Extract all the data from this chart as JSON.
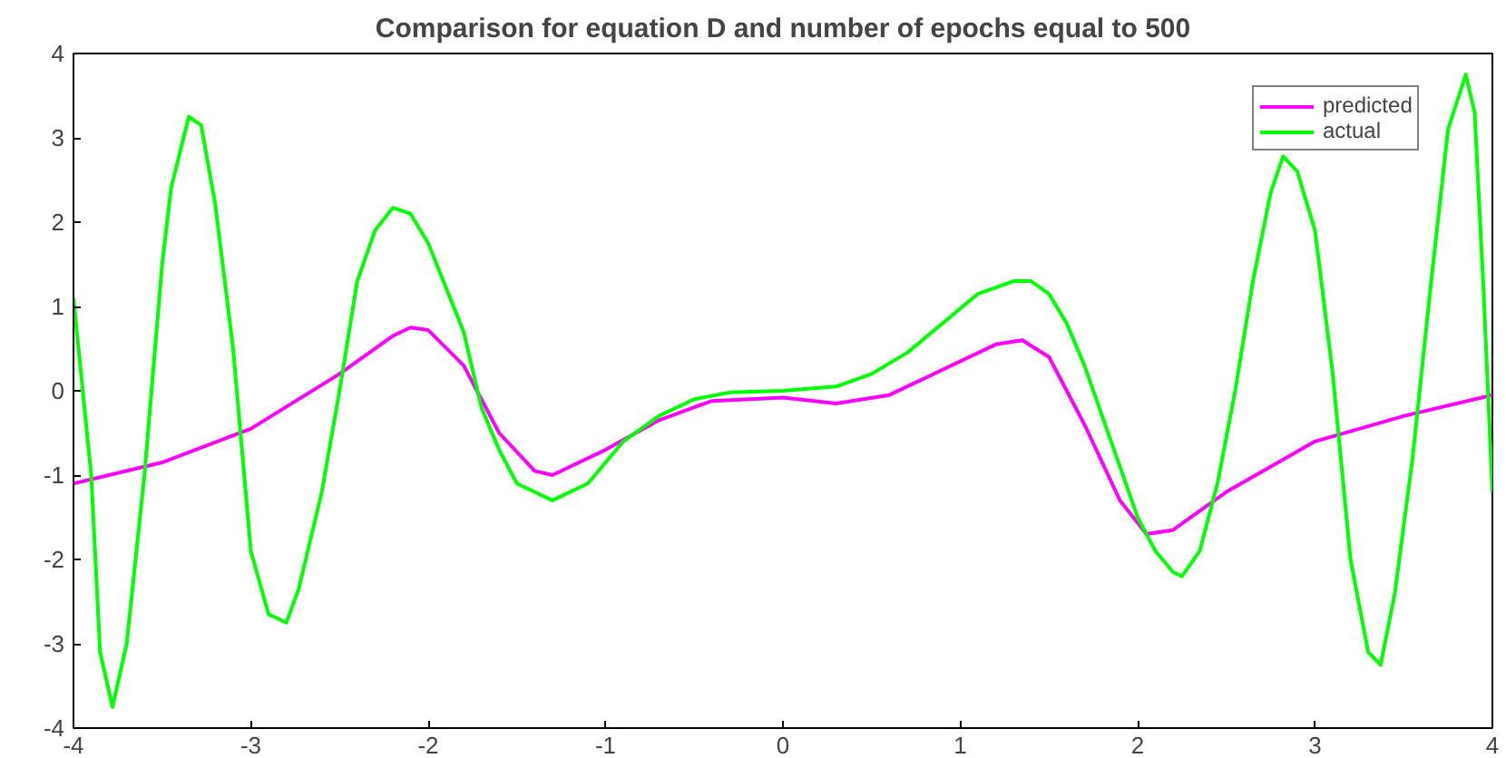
{
  "chart_data": {
    "type": "line",
    "title": "Comparison for equation D and number of epochs equal to 500",
    "xlim": [
      -4,
      4
    ],
    "ylim": [
      -4,
      4
    ],
    "xticks": [
      -4,
      -3,
      -2,
      -1,
      0,
      1,
      2,
      3,
      4
    ],
    "yticks": [
      -4,
      -3,
      -2,
      -1,
      0,
      1,
      2,
      3,
      4
    ],
    "grid": false,
    "legend": "top right",
    "line_style": "solid",
    "marker": "none",
    "series": [
      {
        "name": "predicted",
        "color": "#ff00ff",
        "x": [
          -4,
          -3.5,
          -3,
          -2.5,
          -2.2,
          -2.1,
          -2.0,
          -1.8,
          -1.6,
          -1.4,
          -1.3,
          -1.0,
          -0.7,
          -0.4,
          0,
          0.3,
          0.6,
          0.9,
          1.2,
          1.35,
          1.5,
          1.7,
          1.9,
          2.05,
          2.2,
          2.5,
          3.0,
          3.5,
          4.0
        ],
        "values": [
          -1.1,
          -0.85,
          -0.45,
          0.2,
          0.65,
          0.75,
          0.72,
          0.3,
          -0.5,
          -0.95,
          -1.0,
          -0.7,
          -0.35,
          -0.12,
          -0.08,
          -0.15,
          -0.05,
          0.25,
          0.55,
          0.6,
          0.4,
          -0.4,
          -1.3,
          -1.7,
          -1.65,
          -1.2,
          -0.6,
          -0.3,
          -0.05
        ]
      },
      {
        "name": "actual",
        "color": "#00ff00",
        "x": [
          -4,
          -3.9,
          -3.85,
          -3.78,
          -3.7,
          -3.6,
          -3.5,
          -3.45,
          -3.35,
          -3.28,
          -3.2,
          -3.1,
          -3.0,
          -2.9,
          -2.8,
          -2.73,
          -2.6,
          -2.5,
          -2.4,
          -2.3,
          -2.2,
          -2.1,
          -2.0,
          -1.8,
          -1.7,
          -1.6,
          -1.5,
          -1.3,
          -1.1,
          -0.9,
          -0.7,
          -0.5,
          -0.3,
          0,
          0.3,
          0.5,
          0.7,
          0.9,
          1.1,
          1.3,
          1.4,
          1.5,
          1.6,
          1.7,
          1.8,
          1.9,
          2.0,
          2.1,
          2.2,
          2.25,
          2.35,
          2.45,
          2.55,
          2.65,
          2.75,
          2.82,
          2.9,
          3.0,
          3.1,
          3.2,
          3.3,
          3.37,
          3.45,
          3.55,
          3.65,
          3.75,
          3.85,
          3.9,
          3.95,
          4.0
        ],
        "values": [
          1.1,
          -1.0,
          -3.1,
          -3.75,
          -3.0,
          -1.0,
          1.5,
          2.4,
          3.25,
          3.15,
          2.2,
          0.5,
          -1.9,
          -2.65,
          -2.75,
          -2.35,
          -1.2,
          0,
          1.3,
          1.9,
          2.17,
          2.1,
          1.75,
          0.7,
          -0.2,
          -0.7,
          -1.1,
          -1.3,
          -1.1,
          -0.6,
          -0.3,
          -0.1,
          -0.02,
          0,
          0.05,
          0.2,
          0.45,
          0.8,
          1.15,
          1.3,
          1.3,
          1.15,
          0.8,
          0.3,
          -0.3,
          -0.9,
          -1.5,
          -1.9,
          -2.15,
          -2.2,
          -1.9,
          -1.1,
          0,
          1.3,
          2.35,
          2.78,
          2.6,
          1.9,
          0.2,
          -2.0,
          -3.1,
          -3.25,
          -2.4,
          -0.8,
          1.2,
          3.1,
          3.75,
          3.3,
          1.2,
          -1.2
        ]
      }
    ]
  }
}
